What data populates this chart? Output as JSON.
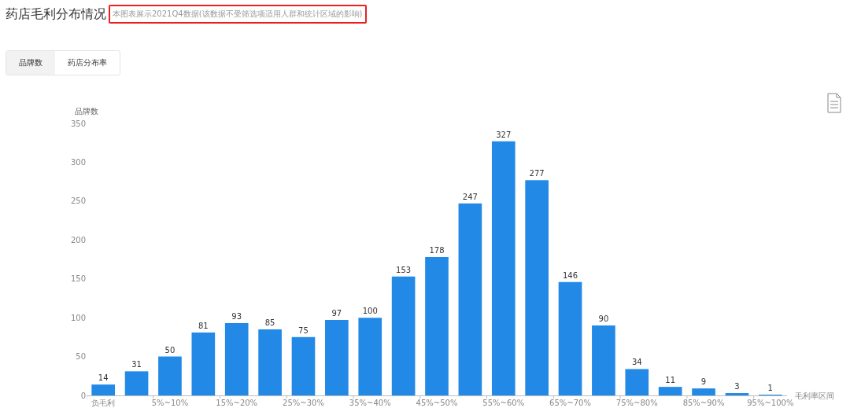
{
  "chart_data": {
    "type": "bar",
    "title": "药店毛利分布情况",
    "subtitle": "本图表展示2021Q4数据(该数据不受筛选项适用人群和统计区域的影响)",
    "annotations": [
      "品牌数",
      "药店分布率"
    ],
    "xlabel": "毛利率区间",
    "ylabel": "品牌数",
    "categories": [
      "负毛利",
      null,
      "5%~10%",
      null,
      "15%~20%",
      null,
      "25%~30%",
      null,
      "35%~40%",
      null,
      "45%~50%",
      null,
      "55%~60%",
      null,
      "65%~70%",
      null,
      "75%~80%",
      null,
      "85%~90%",
      null,
      "95%~100%"
    ],
    "values": [
      14,
      31,
      50,
      81,
      93,
      85,
      75,
      97,
      100,
      153,
      178,
      247,
      327,
      277,
      146,
      90,
      34,
      11,
      9,
      3,
      1
    ],
    "color": "#228ae6",
    "ylim": [
      0,
      350
    ],
    "yticks": [
      0,
      50,
      100,
      150,
      200,
      250,
      300,
      350
    ],
    "grid": false,
    "data_labels": true
  }
}
